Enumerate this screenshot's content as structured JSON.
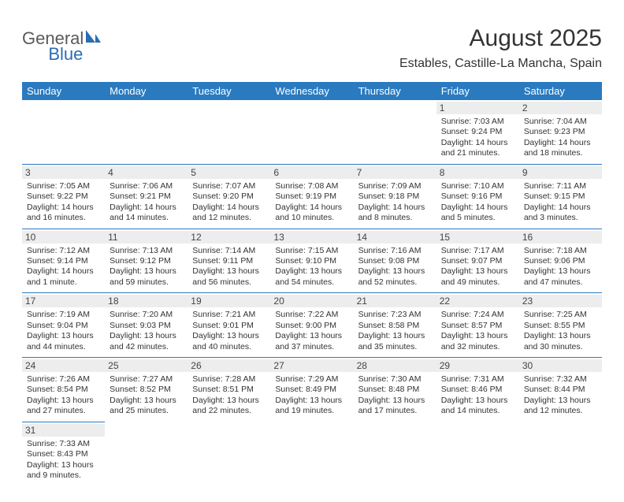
{
  "logo": {
    "text_general": "General",
    "text_blue": "Blue"
  },
  "title": "August 2025",
  "location": "Estables, Castille-La Mancha, Spain",
  "colors": {
    "header_bg": "#2a7ac0",
    "header_text": "#ffffff",
    "daynum_bg": "#ededed",
    "border": "#2a7ac0",
    "logo_blue": "#2a6db5",
    "text": "#333333"
  },
  "weekdays": [
    "Sunday",
    "Monday",
    "Tuesday",
    "Wednesday",
    "Thursday",
    "Friday",
    "Saturday"
  ],
  "weeks": [
    [
      null,
      null,
      null,
      null,
      null,
      {
        "n": "1",
        "sr": "Sunrise: 7:03 AM",
        "ss": "Sunset: 9:24 PM",
        "d1": "Daylight: 14 hours",
        "d2": "and 21 minutes."
      },
      {
        "n": "2",
        "sr": "Sunrise: 7:04 AM",
        "ss": "Sunset: 9:23 PM",
        "d1": "Daylight: 14 hours",
        "d2": "and 18 minutes."
      }
    ],
    [
      {
        "n": "3",
        "sr": "Sunrise: 7:05 AM",
        "ss": "Sunset: 9:22 PM",
        "d1": "Daylight: 14 hours",
        "d2": "and 16 minutes."
      },
      {
        "n": "4",
        "sr": "Sunrise: 7:06 AM",
        "ss": "Sunset: 9:21 PM",
        "d1": "Daylight: 14 hours",
        "d2": "and 14 minutes."
      },
      {
        "n": "5",
        "sr": "Sunrise: 7:07 AM",
        "ss": "Sunset: 9:20 PM",
        "d1": "Daylight: 14 hours",
        "d2": "and 12 minutes."
      },
      {
        "n": "6",
        "sr": "Sunrise: 7:08 AM",
        "ss": "Sunset: 9:19 PM",
        "d1": "Daylight: 14 hours",
        "d2": "and 10 minutes."
      },
      {
        "n": "7",
        "sr": "Sunrise: 7:09 AM",
        "ss": "Sunset: 9:18 PM",
        "d1": "Daylight: 14 hours",
        "d2": "and 8 minutes."
      },
      {
        "n": "8",
        "sr": "Sunrise: 7:10 AM",
        "ss": "Sunset: 9:16 PM",
        "d1": "Daylight: 14 hours",
        "d2": "and 5 minutes."
      },
      {
        "n": "9",
        "sr": "Sunrise: 7:11 AM",
        "ss": "Sunset: 9:15 PM",
        "d1": "Daylight: 14 hours",
        "d2": "and 3 minutes."
      }
    ],
    [
      {
        "n": "10",
        "sr": "Sunrise: 7:12 AM",
        "ss": "Sunset: 9:14 PM",
        "d1": "Daylight: 14 hours",
        "d2": "and 1 minute."
      },
      {
        "n": "11",
        "sr": "Sunrise: 7:13 AM",
        "ss": "Sunset: 9:12 PM",
        "d1": "Daylight: 13 hours",
        "d2": "and 59 minutes."
      },
      {
        "n": "12",
        "sr": "Sunrise: 7:14 AM",
        "ss": "Sunset: 9:11 PM",
        "d1": "Daylight: 13 hours",
        "d2": "and 56 minutes."
      },
      {
        "n": "13",
        "sr": "Sunrise: 7:15 AM",
        "ss": "Sunset: 9:10 PM",
        "d1": "Daylight: 13 hours",
        "d2": "and 54 minutes."
      },
      {
        "n": "14",
        "sr": "Sunrise: 7:16 AM",
        "ss": "Sunset: 9:08 PM",
        "d1": "Daylight: 13 hours",
        "d2": "and 52 minutes."
      },
      {
        "n": "15",
        "sr": "Sunrise: 7:17 AM",
        "ss": "Sunset: 9:07 PM",
        "d1": "Daylight: 13 hours",
        "d2": "and 49 minutes."
      },
      {
        "n": "16",
        "sr": "Sunrise: 7:18 AM",
        "ss": "Sunset: 9:06 PM",
        "d1": "Daylight: 13 hours",
        "d2": "and 47 minutes."
      }
    ],
    [
      {
        "n": "17",
        "sr": "Sunrise: 7:19 AM",
        "ss": "Sunset: 9:04 PM",
        "d1": "Daylight: 13 hours",
        "d2": "and 44 minutes."
      },
      {
        "n": "18",
        "sr": "Sunrise: 7:20 AM",
        "ss": "Sunset: 9:03 PM",
        "d1": "Daylight: 13 hours",
        "d2": "and 42 minutes."
      },
      {
        "n": "19",
        "sr": "Sunrise: 7:21 AM",
        "ss": "Sunset: 9:01 PM",
        "d1": "Daylight: 13 hours",
        "d2": "and 40 minutes."
      },
      {
        "n": "20",
        "sr": "Sunrise: 7:22 AM",
        "ss": "Sunset: 9:00 PM",
        "d1": "Daylight: 13 hours",
        "d2": "and 37 minutes."
      },
      {
        "n": "21",
        "sr": "Sunrise: 7:23 AM",
        "ss": "Sunset: 8:58 PM",
        "d1": "Daylight: 13 hours",
        "d2": "and 35 minutes."
      },
      {
        "n": "22",
        "sr": "Sunrise: 7:24 AM",
        "ss": "Sunset: 8:57 PM",
        "d1": "Daylight: 13 hours",
        "d2": "and 32 minutes."
      },
      {
        "n": "23",
        "sr": "Sunrise: 7:25 AM",
        "ss": "Sunset: 8:55 PM",
        "d1": "Daylight: 13 hours",
        "d2": "and 30 minutes."
      }
    ],
    [
      {
        "n": "24",
        "sr": "Sunrise: 7:26 AM",
        "ss": "Sunset: 8:54 PM",
        "d1": "Daylight: 13 hours",
        "d2": "and 27 minutes."
      },
      {
        "n": "25",
        "sr": "Sunrise: 7:27 AM",
        "ss": "Sunset: 8:52 PM",
        "d1": "Daylight: 13 hours",
        "d2": "and 25 minutes."
      },
      {
        "n": "26",
        "sr": "Sunrise: 7:28 AM",
        "ss": "Sunset: 8:51 PM",
        "d1": "Daylight: 13 hours",
        "d2": "and 22 minutes."
      },
      {
        "n": "27",
        "sr": "Sunrise: 7:29 AM",
        "ss": "Sunset: 8:49 PM",
        "d1": "Daylight: 13 hours",
        "d2": "and 19 minutes."
      },
      {
        "n": "28",
        "sr": "Sunrise: 7:30 AM",
        "ss": "Sunset: 8:48 PM",
        "d1": "Daylight: 13 hours",
        "d2": "and 17 minutes."
      },
      {
        "n": "29",
        "sr": "Sunrise: 7:31 AM",
        "ss": "Sunset: 8:46 PM",
        "d1": "Daylight: 13 hours",
        "d2": "and 14 minutes."
      },
      {
        "n": "30",
        "sr": "Sunrise: 7:32 AM",
        "ss": "Sunset: 8:44 PM",
        "d1": "Daylight: 13 hours",
        "d2": "and 12 minutes."
      }
    ],
    [
      {
        "n": "31",
        "sr": "Sunrise: 7:33 AM",
        "ss": "Sunset: 8:43 PM",
        "d1": "Daylight: 13 hours",
        "d2": "and 9 minutes."
      },
      null,
      null,
      null,
      null,
      null,
      null
    ]
  ]
}
